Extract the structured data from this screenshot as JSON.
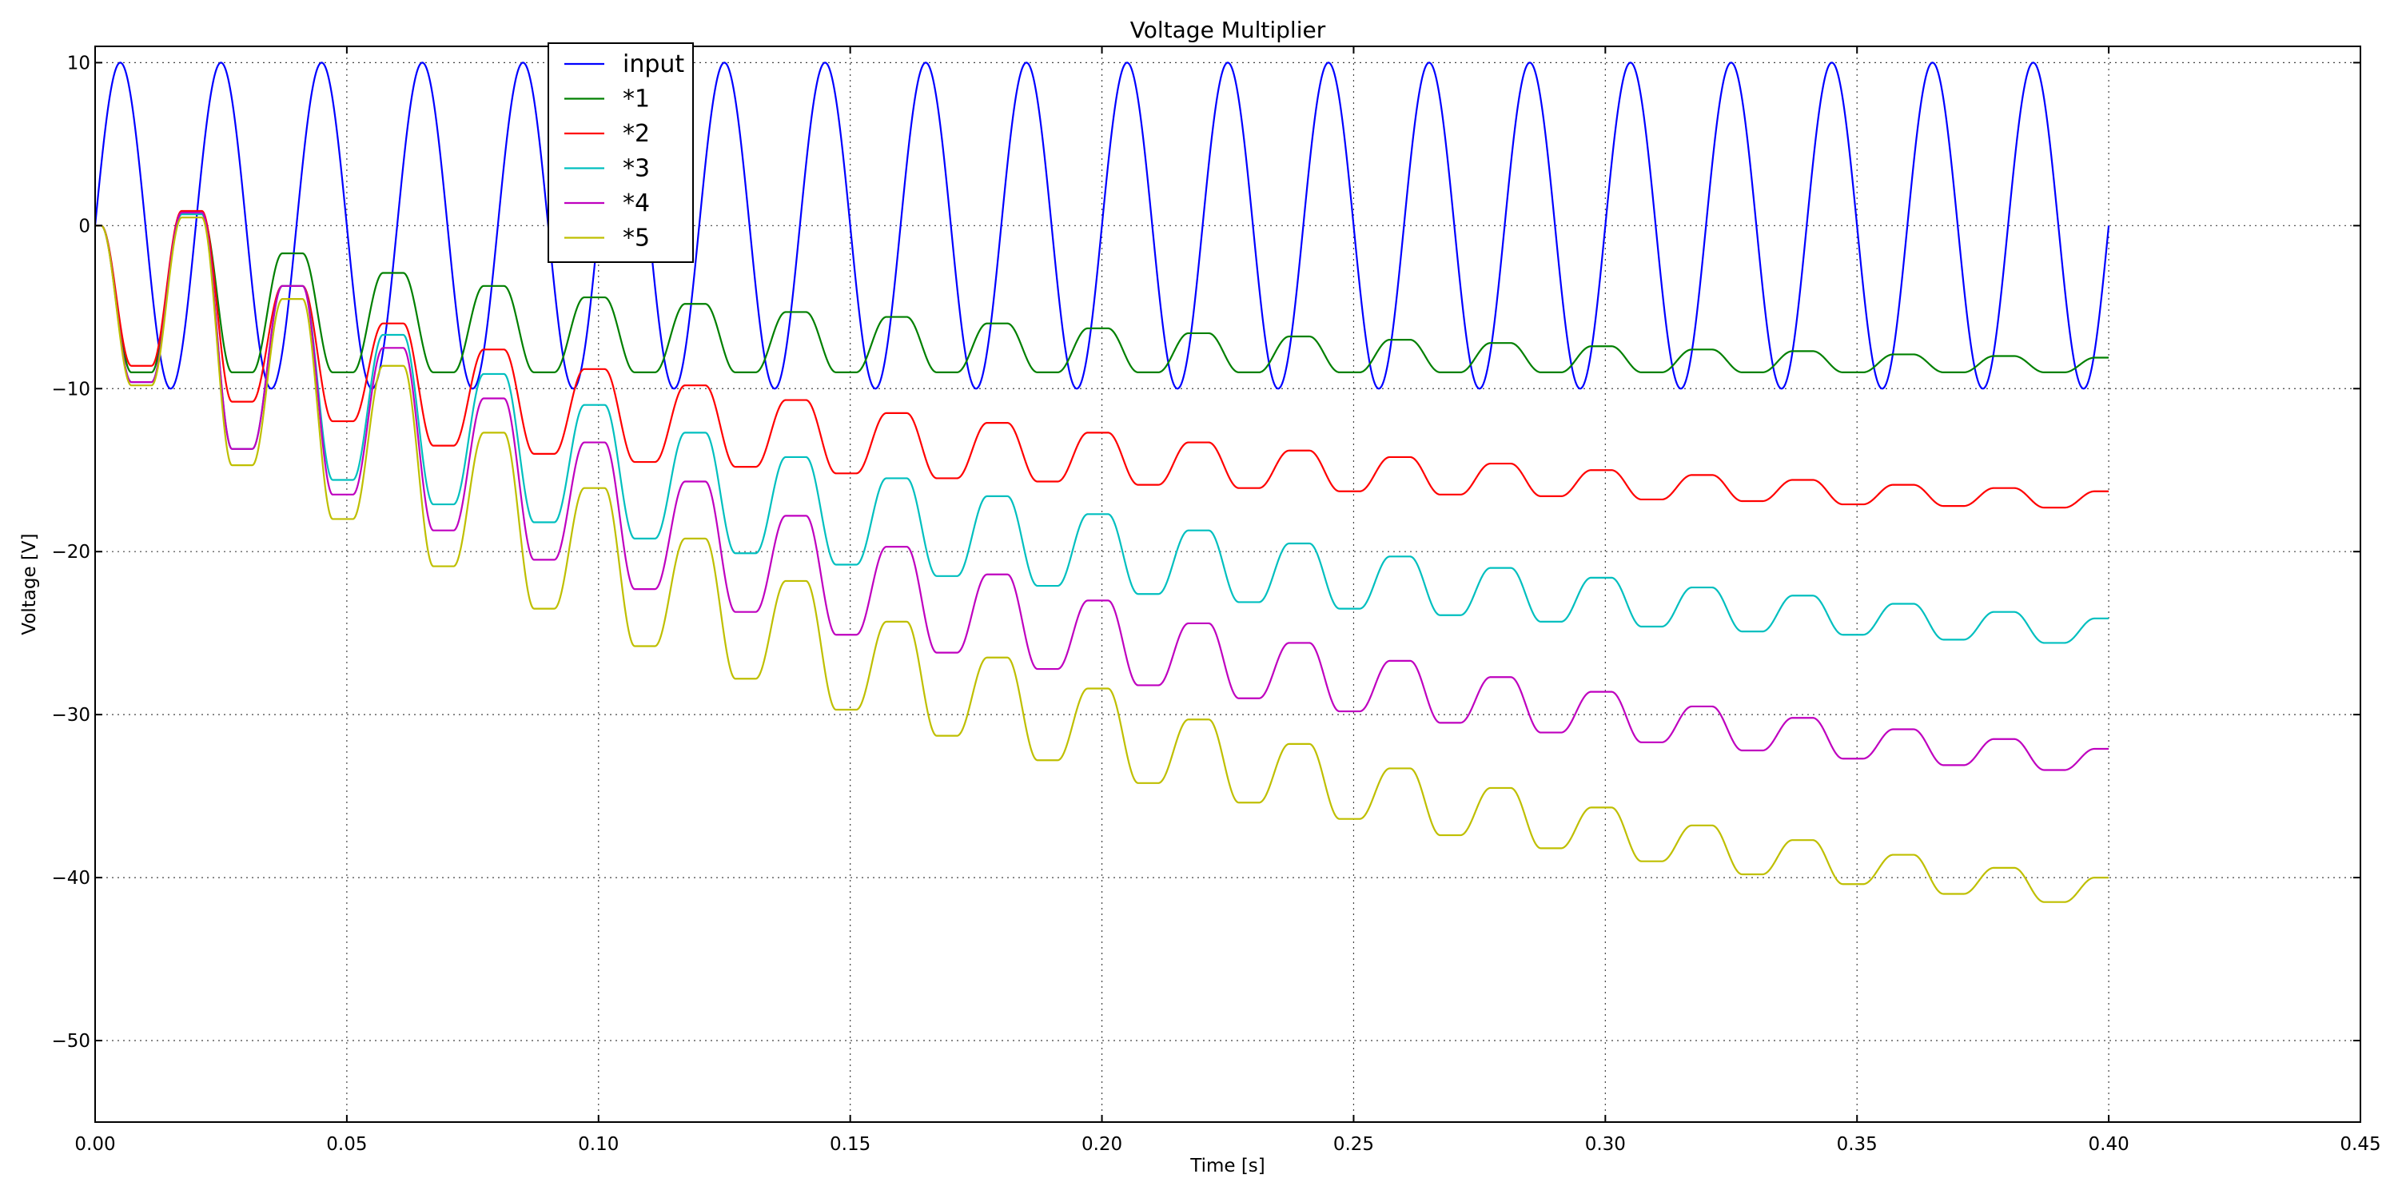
{
  "chart_data": {
    "type": "line",
    "title": "Voltage Multiplier",
    "xlabel": "Time [s]",
    "ylabel": "Voltage [V]",
    "xlim": [
      0.0,
      0.45
    ],
    "ylim": [
      -55,
      11
    ],
    "x_ticks": [
      "0.00",
      "0.05",
      "0.10",
      "0.15",
      "0.20",
      "0.25",
      "0.30",
      "0.35",
      "0.40",
      "0.45"
    ],
    "y_ticks": [
      "10",
      "0",
      "−10",
      "−20",
      "−30",
      "−40",
      "−50"
    ],
    "x_tick_values": [
      0.0,
      0.05,
      0.1,
      0.15,
      0.2,
      0.25,
      0.3,
      0.35,
      0.4,
      0.45
    ],
    "y_tick_values": [
      10,
      0,
      -10,
      -20,
      -30,
      -40,
      -50
    ],
    "grid": true,
    "legend_position": "top-left",
    "x_range": [
      0.0,
      0.4
    ],
    "input_signal": {
      "amplitude": 10,
      "frequency_hz": 50
    },
    "series": [
      {
        "name": "input",
        "color": "#0000ff",
        "shape": "sine"
      },
      {
        "name": "*1",
        "color": "#008000",
        "shape": "clipped-cycle",
        "cycle_troughs": [
          -9.0,
          -9.0,
          -9.0,
          -9.0,
          -9.0,
          -9.0,
          -9.0,
          -9.0,
          -9.0,
          -9.0,
          -9.0,
          -9.0,
          -9.0,
          -9.0,
          -9.0,
          -9.0,
          -9.0,
          -9.0,
          -9.0,
          -9.0
        ],
        "cycle_peaks": [
          0.7,
          -1.7,
          -2.9,
          -3.7,
          -4.4,
          -4.8,
          -5.3,
          -5.6,
          -6.0,
          -6.3,
          -6.6,
          -6.8,
          -7.0,
          -7.2,
          -7.4,
          -7.6,
          -7.7,
          -7.9,
          -8.0,
          -8.1
        ]
      },
      {
        "name": "*2",
        "color": "#ff0000",
        "shape": "clipped-cycle",
        "cycle_troughs": [
          -8.6,
          -10.8,
          -12.0,
          -13.5,
          -14.0,
          -14.5,
          -14.8,
          -15.2,
          -15.5,
          -15.7,
          -15.9,
          -16.1,
          -16.3,
          -16.5,
          -16.6,
          -16.8,
          -16.9,
          -17.1,
          -17.2,
          -17.3
        ],
        "cycle_peaks": [
          0.9,
          -3.7,
          -6.0,
          -7.6,
          -8.8,
          -9.8,
          -10.7,
          -11.5,
          -12.1,
          -12.7,
          -13.3,
          -13.8,
          -14.2,
          -14.6,
          -15.0,
          -15.3,
          -15.6,
          -15.9,
          -16.1,
          -16.3
        ]
      },
      {
        "name": "*3",
        "color": "#00bfbf",
        "shape": "clipped-cycle",
        "cycle_troughs": [
          -9.6,
          -13.7,
          -15.6,
          -17.1,
          -18.2,
          -19.2,
          -20.1,
          -20.8,
          -21.5,
          -22.1,
          -22.6,
          -23.1,
          -23.5,
          -23.9,
          -24.3,
          -24.6,
          -24.9,
          -25.1,
          -25.4,
          -25.6
        ],
        "cycle_peaks": [
          0.7,
          -3.7,
          -6.7,
          -9.1,
          -11.0,
          -12.7,
          -14.2,
          -15.5,
          -16.6,
          -17.7,
          -18.7,
          -19.5,
          -20.3,
          -21.0,
          -21.6,
          -22.2,
          -22.7,
          -23.2,
          -23.7,
          -24.1
        ]
      },
      {
        "name": "*4",
        "color": "#bf00bf",
        "shape": "clipped-cycle",
        "cycle_troughs": [
          -9.6,
          -13.7,
          -16.5,
          -18.7,
          -20.5,
          -22.3,
          -23.7,
          -25.1,
          -26.2,
          -27.2,
          -28.2,
          -29.0,
          -29.8,
          -30.5,
          -31.1,
          -31.7,
          -32.2,
          -32.7,
          -33.1,
          -33.4
        ],
        "cycle_peaks": [
          0.8,
          -3.7,
          -7.5,
          -10.6,
          -13.3,
          -15.7,
          -17.8,
          -19.7,
          -21.4,
          -23.0,
          -24.4,
          -25.6,
          -26.7,
          -27.7,
          -28.6,
          -29.5,
          -30.2,
          -30.9,
          -31.5,
          -32.1
        ]
      },
      {
        "name": "*5",
        "color": "#bfbf00",
        "shape": "clipped-cycle",
        "cycle_troughs": [
          -9.8,
          -14.7,
          -18.0,
          -20.9,
          -23.5,
          -25.8,
          -27.8,
          -29.7,
          -31.3,
          -32.8,
          -34.2,
          -35.4,
          -36.4,
          -37.4,
          -38.2,
          -39.0,
          -39.8,
          -40.4,
          -41.0,
          -41.5
        ],
        "cycle_peaks": [
          0.5,
          -4.5,
          -8.6,
          -12.7,
          -16.1,
          -19.2,
          -21.8,
          -24.3,
          -26.5,
          -28.4,
          -30.3,
          -31.8,
          -33.3,
          -34.5,
          -35.7,
          -36.8,
          -37.7,
          -38.6,
          -39.4,
          -40.0
        ]
      }
    ]
  }
}
